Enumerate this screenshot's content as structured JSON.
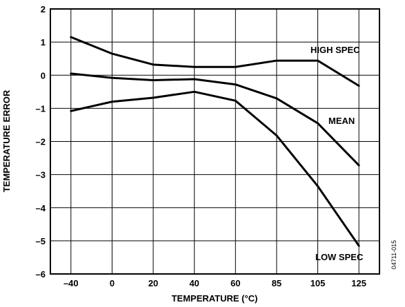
{
  "chart_data": {
    "type": "line",
    "title": "",
    "xlabel": "TEMPERATURE (°C)",
    "ylabel": "TEMPERATURE ERROR",
    "categories": [
      "–40",
      "0",
      "20",
      "40",
      "60",
      "85",
      "105",
      "125"
    ],
    "yticks": [
      "2",
      "1",
      "0",
      "–1",
      "–2",
      "–3",
      "–4",
      "–5",
      "–6"
    ],
    "ylim": [
      -6,
      2
    ],
    "grid": true,
    "series": [
      {
        "name": "HIGH SPEC",
        "values": [
          1.15,
          0.65,
          0.32,
          0.25,
          0.25,
          0.44,
          0.44,
          -0.32
        ]
      },
      {
        "name": "MEAN",
        "values": [
          0.05,
          -0.08,
          -0.15,
          -0.12,
          -0.28,
          -0.7,
          -1.45,
          -2.72
        ]
      },
      {
        "name": "LOW SPEC",
        "values": [
          -1.08,
          -0.8,
          -0.68,
          -0.5,
          -0.77,
          -1.82,
          -3.35,
          -5.15
        ]
      }
    ],
    "figure_id": "04711-015"
  }
}
